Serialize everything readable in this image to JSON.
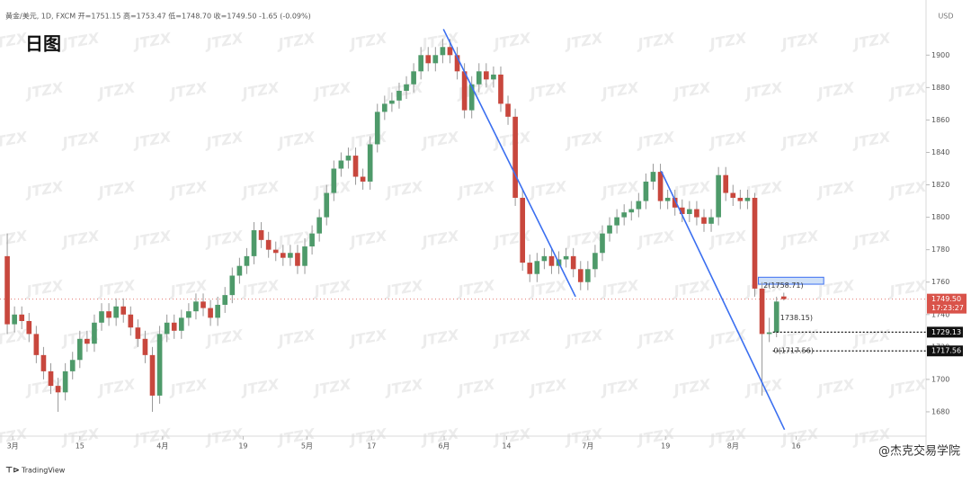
{
  "chart_data": {
    "type": "candlestick",
    "header": "黄金/美元, 1D, FXCM  开=1751.15  高=1753.47  低=1748.70  收=1749.50  -1.65 (-0.09%)",
    "title": "日图",
    "currency": "USD",
    "watermark": "JTZX",
    "brand": "TradingView",
    "credit": "@杰克交易学院",
    "up_color": "#4e9a6a",
    "down_color": "#c8473d",
    "trendline_color": "#3b6ff0",
    "xlim": [
      -1,
      126.6
    ],
    "ylim": [
      1665,
      1934
    ],
    "yticks": [
      1680,
      1700,
      1720,
      1740,
      1760,
      1780,
      1800,
      1820,
      1840,
      1860,
      1880,
      1900
    ],
    "xticks": [
      {
        "value": 0.75,
        "label": "3月"
      },
      {
        "value": 10,
        "label": "15"
      },
      {
        "value": 21.4,
        "label": "4月"
      },
      {
        "value": 32.5,
        "label": "19"
      },
      {
        "value": 41.3,
        "label": "5月"
      },
      {
        "value": 50.2,
        "label": "17"
      },
      {
        "value": 60.2,
        "label": "6月"
      },
      {
        "value": 68.8,
        "label": "14"
      },
      {
        "value": 80,
        "label": "7月"
      },
      {
        "value": 90.7,
        "label": "19"
      },
      {
        "value": 100,
        "label": "8月"
      },
      {
        "value": 108.7,
        "label": "16"
      }
    ],
    "open": [
      1776,
      1734,
      1740,
      1736,
      1728,
      1715,
      1705,
      1696,
      1692,
      1705,
      1712,
      1725,
      1722,
      1735,
      1742,
      1738,
      1745,
      1740,
      1732,
      1725,
      1715,
      1690,
      1728,
      1735,
      1730,
      1738,
      1742,
      1748,
      1744,
      1738,
      1746,
      1752,
      1764,
      1770,
      1776,
      1792,
      1786,
      1780,
      1778,
      1775,
      1778,
      1770,
      1782,
      1790,
      1800,
      1815,
      1830,
      1835,
      1838,
      1825,
      1822,
      1845,
      1865,
      1870,
      1872,
      1878,
      1882,
      1890,
      1900,
      1895,
      1900,
      1905,
      1900,
      1890,
      1866,
      1882,
      1890,
      1885,
      1888,
      1870,
      1862,
      1812,
      1772,
      1765,
      1773,
      1776,
      1770,
      1774,
      1776,
      1768,
      1760,
      1768,
      1778,
      1790,
      1795,
      1800,
      1803,
      1805,
      1810,
      1822,
      1828,
      1810,
      1812,
      1806,
      1802,
      1805,
      1800,
      1796,
      1800,
      1826,
      1815,
      1812,
      1810,
      1812,
      1756,
      1728,
      1729,
      1751.15
    ],
    "high": [
      1790,
      1745,
      1745,
      1741,
      1733,
      1720,
      1710,
      1701,
      1710,
      1717,
      1730,
      1730,
      1740,
      1747,
      1747,
      1750,
      1750,
      1745,
      1737,
      1730,
      1720,
      1733,
      1740,
      1740,
      1743,
      1747,
      1753,
      1753,
      1749,
      1751,
      1757,
      1769,
      1775,
      1781,
      1797,
      1797,
      1791,
      1785,
      1783,
      1783,
      1783,
      1787,
      1795,
      1805,
      1820,
      1835,
      1840,
      1843,
      1843,
      1830,
      1850,
      1870,
      1875,
      1877,
      1883,
      1887,
      1895,
      1905,
      1905,
      1905,
      1910,
      1910,
      1905,
      1895,
      1887,
      1895,
      1895,
      1893,
      1893,
      1875,
      1867,
      1817,
      1777,
      1778,
      1781,
      1781,
      1779,
      1781,
      1781,
      1773,
      1773,
      1783,
      1795,
      1800,
      1805,
      1808,
      1810,
      1815,
      1827,
      1833,
      1833,
      1817,
      1817,
      1811,
      1810,
      1810,
      1805,
      1805,
      1831,
      1831,
      1820,
      1817,
      1817,
      1815,
      1760,
      1738,
      1751,
      1753.47
    ],
    "low": [
      1728,
      1729,
      1731,
      1723,
      1710,
      1700,
      1691,
      1680,
      1687,
      1700,
      1707,
      1717,
      1717,
      1730,
      1733,
      1733,
      1735,
      1727,
      1720,
      1710,
      1680,
      1685,
      1723,
      1725,
      1725,
      1733,
      1737,
      1739,
      1733,
      1733,
      1741,
      1747,
      1759,
      1765,
      1771,
      1781,
      1775,
      1773,
      1770,
      1770,
      1765,
      1765,
      1777,
      1785,
      1795,
      1810,
      1825,
      1830,
      1820,
      1817,
      1817,
      1840,
      1860,
      1865,
      1867,
      1873,
      1877,
      1885,
      1890,
      1890,
      1895,
      1895,
      1885,
      1861,
      1861,
      1877,
      1880,
      1880,
      1865,
      1857,
      1807,
      1767,
      1760,
      1760,
      1768,
      1765,
      1765,
      1769,
      1763,
      1755,
      1755,
      1763,
      1773,
      1785,
      1790,
      1795,
      1798,
      1800,
      1805,
      1817,
      1805,
      1805,
      1801,
      1797,
      1797,
      1795,
      1791,
      1791,
      1795,
      1810,
      1807,
      1805,
      1805,
      1751,
      1690,
      1723,
      1726,
      1748.7
    ],
    "close": [
      1734,
      1740,
      1736,
      1728,
      1715,
      1705,
      1696,
      1692,
      1705,
      1712,
      1725,
      1722,
      1735,
      1742,
      1738,
      1745,
      1740,
      1732,
      1725,
      1715,
      1690,
      1728,
      1735,
      1730,
      1738,
      1742,
      1748,
      1744,
      1738,
      1746,
      1752,
      1764,
      1770,
      1776,
      1792,
      1786,
      1780,
      1778,
      1775,
      1778,
      1770,
      1782,
      1790,
      1800,
      1815,
      1830,
      1835,
      1838,
      1825,
      1822,
      1845,
      1865,
      1870,
      1872,
      1878,
      1882,
      1890,
      1900,
      1895,
      1900,
      1905,
      1900,
      1890,
      1866,
      1882,
      1890,
      1885,
      1888,
      1870,
      1862,
      1812,
      1772,
      1765,
      1773,
      1776,
      1770,
      1774,
      1776,
      1768,
      1760,
      1768,
      1778,
      1790,
      1795,
      1800,
      1803,
      1805,
      1810,
      1822,
      1828,
      1810,
      1812,
      1806,
      1802,
      1805,
      1800,
      1796,
      1800,
      1826,
      1815,
      1812,
      1810,
      1812,
      1756,
      1728,
      1729,
      1748,
      1749.5
    ],
    "trendlines": [
      {
        "x": [
          60.1,
          78.3
        ],
        "y": [
          1916,
          1751
        ]
      },
      {
        "x": [
          90.1,
          107.1
        ],
        "y": [
          1828.5,
          1669
        ]
      }
    ],
    "zone": {
      "x": [
        103.5,
        112.5
      ],
      "y": [
        1758.71,
        1763
      ]
    },
    "last_price": {
      "value": 1749.5,
      "label": "1749.50",
      "countdown": "17:23:27"
    },
    "levels": [
      {
        "value": 1729.13,
        "label": "1729.13",
        "from": 105.5
      },
      {
        "value": 1717.56,
        "label": "1717.56",
        "from": 105.5
      }
    ],
    "annotations": [
      {
        "text": "2(1758.71)",
        "x": 104.2,
        "y": 1758
      },
      {
        "text": "1738.15)",
        "x": 106.5,
        "y": 1738
      },
      {
        "text": "0(1717.56)",
        "x": 105.6,
        "y": 1717.56
      }
    ]
  }
}
